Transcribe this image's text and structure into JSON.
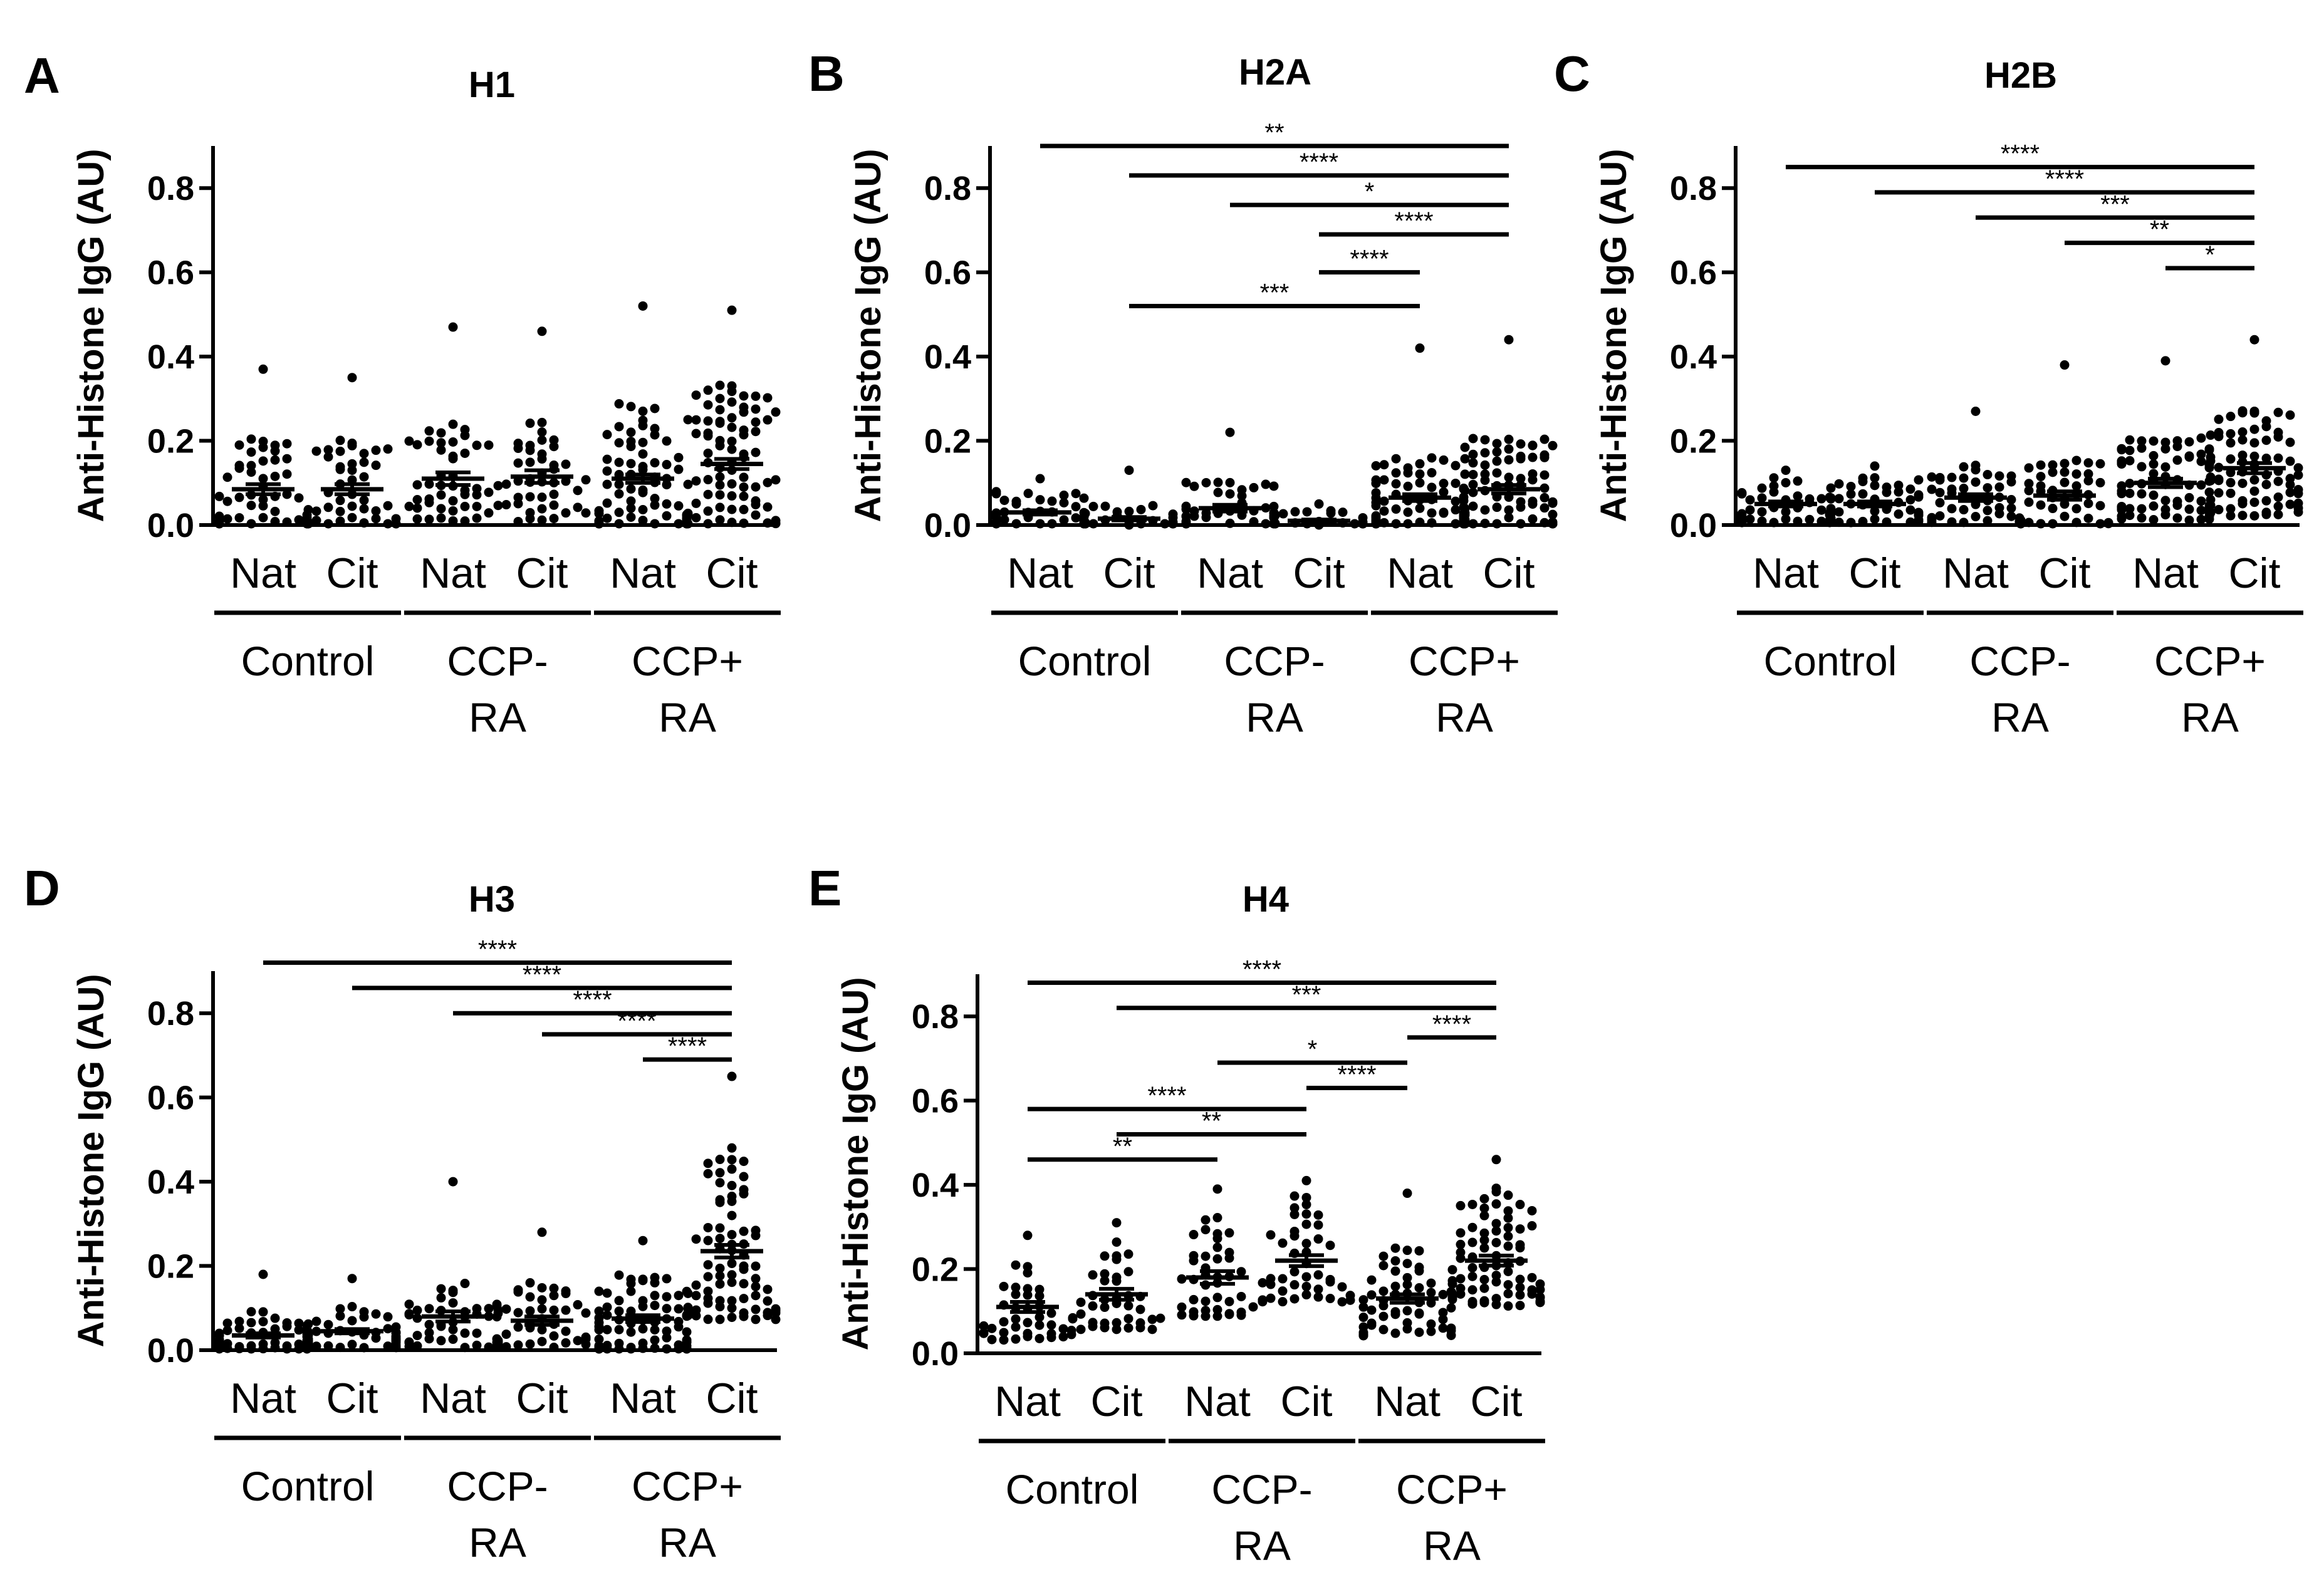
{
  "figure": {
    "panels": [
      "A",
      "B",
      "C",
      "D",
      "E"
    ]
  },
  "chart_data": [
    {
      "panel_label": "A",
      "type": "scatter",
      "title": "H1",
      "ylabel": "Anti-Histone IgG (AU)",
      "ylim": [
        0,
        0.9
      ],
      "yticks": [
        "0.0",
        "0.2",
        "0.4",
        "0.6",
        "0.8"
      ],
      "ytick_values": [
        0,
        0.2,
        0.4,
        0.6,
        0.8
      ],
      "categories": [
        "Nat",
        "Cit",
        "Nat",
        "Cit",
        "Nat",
        "Cit"
      ],
      "groups": [
        [
          "Control"
        ],
        [
          "CCP-",
          "RA"
        ],
        [
          "CCP+",
          "RA"
        ]
      ],
      "series": [
        {
          "name": "Control Nat",
          "mean": 0.085,
          "sem": 0.012,
          "n": 50,
          "median": 0.07,
          "max": 0.37,
          "spread": 0.15
        },
        {
          "name": "Control Cit",
          "mean": 0.085,
          "sem": 0.012,
          "n": 46,
          "median": 0.07,
          "max": 0.35,
          "spread": 0.15
        },
        {
          "name": "CCP- RA Nat",
          "mean": 0.11,
          "sem": 0.015,
          "n": 46,
          "median": 0.09,
          "max": 0.47,
          "spread": 0.17
        },
        {
          "name": "CCP- RA Cit",
          "mean": 0.115,
          "sem": 0.015,
          "n": 46,
          "median": 0.09,
          "max": 0.46,
          "spread": 0.17
        },
        {
          "name": "CCP+ RA Nat",
          "mean": 0.11,
          "sem": 0.01,
          "n": 80,
          "median": 0.09,
          "max": 0.52,
          "spread": 0.22
        },
        {
          "name": "CCP+ RA Cit",
          "mean": 0.145,
          "sem": 0.012,
          "n": 80,
          "median": 0.12,
          "max": 0.51,
          "spread": 0.24
        }
      ],
      "comparisons": []
    },
    {
      "panel_label": "B",
      "type": "scatter",
      "title": "H2A",
      "ylabel": "Anti-Histone IgG (AU)",
      "ylim": [
        0,
        0.9
      ],
      "yticks": [
        "0.0",
        "0.2",
        "0.4",
        "0.6",
        "0.8"
      ],
      "ytick_values": [
        0,
        0.2,
        0.4,
        0.6,
        0.8
      ],
      "categories": [
        "Nat",
        "Cit",
        "Nat",
        "Cit",
        "Nat",
        "Cit"
      ],
      "groups": [
        [
          "Control"
        ],
        [
          "CCP-",
          "RA"
        ],
        [
          "CCP+",
          "RA"
        ]
      ],
      "series": [
        {
          "name": "Control Nat",
          "mean": 0.03,
          "sem": 0.005,
          "n": 46,
          "median": 0.025,
          "max": 0.11,
          "spread": 0.06
        },
        {
          "name": "Control Cit",
          "mean": 0.015,
          "sem": 0.004,
          "n": 32,
          "median": 0.01,
          "max": 0.13,
          "spread": 0.04
        },
        {
          "name": "CCP- RA Nat",
          "mean": 0.04,
          "sem": 0.008,
          "n": 46,
          "median": 0.03,
          "max": 0.22,
          "spread": 0.08
        },
        {
          "name": "CCP- RA Cit",
          "mean": 0.01,
          "sem": 0.003,
          "n": 32,
          "median": 0.008,
          "max": 0.05,
          "spread": 0.03
        },
        {
          "name": "CCP+ RA Nat",
          "mean": 0.065,
          "sem": 0.008,
          "n": 82,
          "median": 0.05,
          "max": 0.42,
          "spread": 0.13
        },
        {
          "name": "CCP+ RA Cit",
          "mean": 0.085,
          "sem": 0.01,
          "n": 82,
          "median": 0.07,
          "max": 0.44,
          "spread": 0.15
        }
      ],
      "comparisons": [
        {
          "from": 0,
          "to": 5,
          "label": "**",
          "y": 0.9
        },
        {
          "from": 1,
          "to": 5,
          "label": "****",
          "y": 0.83
        },
        {
          "from": 2,
          "to": 5,
          "label": "*",
          "y": 0.76
        },
        {
          "from": 3,
          "to": 5,
          "label": "****",
          "y": 0.69
        },
        {
          "from": 3,
          "to": 4,
          "label": "****",
          "y": 0.6
        },
        {
          "from": 1,
          "to": 4,
          "label": "***",
          "y": 0.52
        }
      ]
    },
    {
      "panel_label": "C",
      "type": "scatter",
      "title": "H2B",
      "ylabel": "Anti-Histone IgG (AU)",
      "ylim": [
        0,
        0.9
      ],
      "yticks": [
        "0.0",
        "0.2",
        "0.4",
        "0.6",
        "0.8"
      ],
      "ytick_values": [
        0,
        0.2,
        0.4,
        0.6,
        0.8
      ],
      "categories": [
        "Nat",
        "Cit",
        "Nat",
        "Cit",
        "Nat",
        "Cit"
      ],
      "groups": [
        [
          "Control"
        ],
        [
          "CCP-",
          "RA"
        ],
        [
          "CCP+",
          "RA"
        ]
      ],
      "series": [
        {
          "name": "Control Nat",
          "mean": 0.05,
          "sem": 0.006,
          "n": 50,
          "median": 0.045,
          "max": 0.13,
          "spread": 0.08
        },
        {
          "name": "Control Cit",
          "mean": 0.05,
          "sem": 0.006,
          "n": 50,
          "median": 0.045,
          "max": 0.14,
          "spread": 0.08
        },
        {
          "name": "CCP- RA Nat",
          "mean": 0.065,
          "sem": 0.008,
          "n": 46,
          "median": 0.055,
          "max": 0.27,
          "spread": 0.1
        },
        {
          "name": "CCP- RA Cit",
          "mean": 0.07,
          "sem": 0.01,
          "n": 46,
          "median": 0.055,
          "max": 0.38,
          "spread": 0.11
        },
        {
          "name": "CCP+ RA Nat",
          "mean": 0.1,
          "sem": 0.01,
          "n": 80,
          "median": 0.08,
          "max": 0.39,
          "spread": 0.14
        },
        {
          "name": "CCP+ RA Cit",
          "mean": 0.135,
          "sem": 0.012,
          "n": 82,
          "median": 0.11,
          "max": 0.44,
          "spread": 0.18
        }
      ],
      "comparisons": [
        {
          "from": 0,
          "to": 5,
          "label": "****",
          "y": 0.85
        },
        {
          "from": 1,
          "to": 5,
          "label": "****",
          "y": 0.79
        },
        {
          "from": 2,
          "to": 5,
          "label": "***",
          "y": 0.73
        },
        {
          "from": 3,
          "to": 5,
          "label": "**",
          "y": 0.67
        },
        {
          "from": 4,
          "to": 5,
          "label": "*",
          "y": 0.61
        }
      ]
    },
    {
      "panel_label": "D",
      "type": "scatter",
      "title": "H3",
      "ylabel": "Anti-Histone IgG (AU)",
      "ylim": [
        0,
        0.9
      ],
      "yticks": [
        "0.0",
        "0.2",
        "0.4",
        "0.6",
        "0.8"
      ],
      "ytick_values": [
        0,
        0.2,
        0.4,
        0.6,
        0.8
      ],
      "categories": [
        "Nat",
        "Cit",
        "Nat",
        "Cit",
        "Nat",
        "Cit"
      ],
      "groups": [
        [
          "Control"
        ],
        [
          "CCP-",
          "RA"
        ],
        [
          "CCP+",
          "RA"
        ]
      ],
      "series": [
        {
          "name": "Control Nat",
          "mean": 0.035,
          "sem": 0.005,
          "n": 50,
          "median": 0.03,
          "max": 0.18,
          "spread": 0.07
        },
        {
          "name": "Control Cit",
          "mean": 0.045,
          "sem": 0.005,
          "n": 50,
          "median": 0.04,
          "max": 0.17,
          "spread": 0.07
        },
        {
          "name": "CCP- RA Nat",
          "mean": 0.08,
          "sem": 0.012,
          "n": 46,
          "median": 0.065,
          "max": 0.4,
          "spread": 0.12
        },
        {
          "name": "CCP- RA Cit",
          "mean": 0.07,
          "sem": 0.01,
          "n": 46,
          "median": 0.06,
          "max": 0.28,
          "spread": 0.11
        },
        {
          "name": "CCP+ RA Nat",
          "mean": 0.075,
          "sem": 0.008,
          "n": 80,
          "median": 0.06,
          "max": 0.26,
          "spread": 0.13
        },
        {
          "name": "CCP+ RA Cit",
          "mean": 0.235,
          "sem": 0.015,
          "n": 82,
          "median": 0.22,
          "max": 0.65,
          "spread": 0.3
        }
      ],
      "comparisons": [
        {
          "from": 0,
          "to": 5,
          "label": "****",
          "y": 0.92
        },
        {
          "from": 1,
          "to": 5,
          "label": "****",
          "y": 0.86
        },
        {
          "from": 2,
          "to": 5,
          "label": "****",
          "y": 0.8
        },
        {
          "from": 3,
          "to": 5,
          "label": "****",
          "y": 0.75
        },
        {
          "from": 4,
          "to": 5,
          "label": "****",
          "y": 0.69
        }
      ]
    },
    {
      "panel_label": "E",
      "type": "scatter",
      "title": "H4",
      "ylabel": "Anti-Histone IgG (AU)",
      "ylim": [
        0,
        0.9
      ],
      "yticks": [
        "0.0",
        "0.2",
        "0.4",
        "0.6",
        "0.8"
      ],
      "ytick_values": [
        0,
        0.2,
        0.4,
        0.6,
        0.8
      ],
      "categories": [
        "Nat",
        "Cit",
        "Nat",
        "Cit",
        "Nat",
        "Cit"
      ],
      "groups": [
        [
          "Control"
        ],
        [
          "CCP-",
          "RA"
        ],
        [
          "CCP+",
          "RA"
        ]
      ],
      "series": [
        {
          "name": "Control Nat",
          "mean": 0.11,
          "sem": 0.012,
          "n": 40,
          "median": 0.1,
          "max": 0.28,
          "spread": 0.14
        },
        {
          "name": "Control Cit",
          "mean": 0.14,
          "sem": 0.013,
          "n": 40,
          "median": 0.13,
          "max": 0.31,
          "spread": 0.15
        },
        {
          "name": "CCP- RA Nat",
          "mean": 0.18,
          "sem": 0.015,
          "n": 42,
          "median": 0.17,
          "max": 0.39,
          "spread": 0.17
        },
        {
          "name": "CCP- RA Cit",
          "mean": 0.22,
          "sem": 0.013,
          "n": 46,
          "median": 0.21,
          "max": 0.41,
          "spread": 0.18
        },
        {
          "name": "CCP+ RA Nat",
          "mean": 0.13,
          "sem": 0.01,
          "n": 60,
          "median": 0.12,
          "max": 0.38,
          "spread": 0.16
        },
        {
          "name": "CCP+ RA Cit",
          "mean": 0.22,
          "sem": 0.012,
          "n": 82,
          "median": 0.21,
          "max": 0.46,
          "spread": 0.2
        }
      ],
      "comparisons": [
        {
          "from": 0,
          "to": 5,
          "label": "****",
          "y": 0.88
        },
        {
          "from": 1,
          "to": 5,
          "label": "***",
          "y": 0.82
        },
        {
          "from": 4,
          "to": 5,
          "label": "****",
          "y": 0.75
        },
        {
          "from": 2,
          "to": 4,
          "label": "*",
          "y": 0.69
        },
        {
          "from": 3,
          "to": 4,
          "label": "****",
          "y": 0.63
        },
        {
          "from": 0,
          "to": 3,
          "label": "****",
          "y": 0.58
        },
        {
          "from": 1,
          "to": 3,
          "label": "**",
          "y": 0.52
        },
        {
          "from": 0,
          "to": 2,
          "label": "**",
          "y": 0.46
        }
      ]
    }
  ]
}
